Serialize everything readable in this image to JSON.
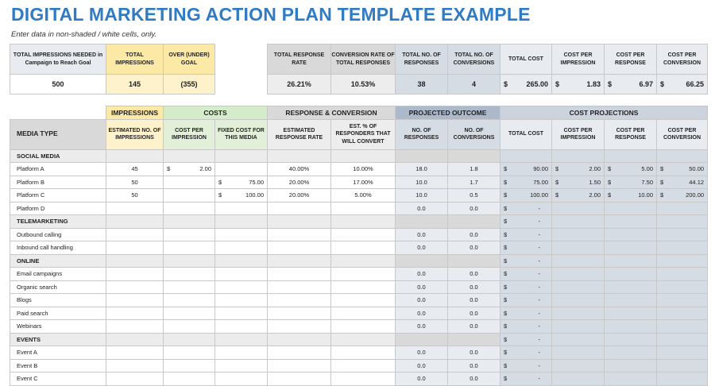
{
  "title": "DIGITAL MARKETING ACTION PLAN TEMPLATE EXAMPLE",
  "subtitle": "Enter data in non-shaded / white cells, only.",
  "summary_left": {
    "headers": [
      "TOTAL IMPRESSIONS NEEDED in Campaign to Reach Goal",
      "TOTAL IMPRESSIONS",
      "OVER (UNDER) GOAL"
    ],
    "values": [
      "500",
      "145",
      "(355)"
    ]
  },
  "summary_right": {
    "headers": [
      "TOTAL RESPONSE RATE",
      "CONVERSION RATE OF TOTAL RESPONSES",
      "TOTAL NO. OF RESPONSES",
      "TOTAL NO. OF CONVERSIONS",
      "TOTAL COST",
      "COST PER IMPRESSION",
      "COST PER RESPONSE",
      "COST PER CONVERSION"
    ],
    "values": [
      "26.21%",
      "10.53%",
      "38",
      "4",
      "265.00",
      "1.83",
      "6.97",
      "66.25"
    ],
    "currency": "$"
  },
  "groups": [
    "IMPRESSIONS",
    "COSTS",
    "RESPONSE & CONVERSION",
    "PROJECTED OUTCOME",
    "COST PROJECTIONS"
  ],
  "columns": [
    "MEDIA TYPE",
    "ESTIMATED NO. OF IMPRESSIONS",
    "COST PER IMPRESSION",
    "FIXED COST FOR THIS MEDIA",
    "ESTIMATED RESPONSE RATE",
    "EST. % OF RESPONDERS THAT WILL CONVERT",
    "NO. OF RESPONSES",
    "NO. OF CONVERSIONS",
    "TOTAL COST",
    "COST PER IMPRESSION",
    "COST PER RESPONSE",
    "COST PER CONVERSION"
  ],
  "rows": [
    {
      "section": true,
      "name": "SOCIAL MEDIA",
      "cells": [
        "",
        "",
        "",
        "",
        "",
        "",
        "",
        "",
        "",
        "",
        ""
      ]
    },
    {
      "name": "Platform A",
      "cells": [
        "45",
        "2.00",
        "",
        "40.00%",
        "10.00%",
        "18.0",
        "1.8",
        "90.00",
        "2.00",
        "5.00",
        "50.00"
      ]
    },
    {
      "name": "Platform B",
      "cells": [
        "50",
        "",
        "75.00",
        "20.00%",
        "17.00%",
        "10.0",
        "1.7",
        "75.00",
        "1.50",
        "7.50",
        "44.12"
      ]
    },
    {
      "name": "Platform C",
      "cells": [
        "50",
        "",
        "100.00",
        "20.00%",
        "5.00%",
        "10.0",
        "0.5",
        "100.00",
        "2.00",
        "10.00",
        "200.00"
      ]
    },
    {
      "name": "Platform D",
      "cells": [
        "",
        "",
        "",
        "",
        "",
        "0.0",
        "0.0",
        "-",
        "",
        "",
        ""
      ]
    },
    {
      "section": true,
      "name": "TELEMARKETING",
      "cells": [
        "",
        "",
        "",
        "",
        "",
        "",
        "",
        "-",
        "",
        "",
        ""
      ]
    },
    {
      "name": "Outbound calling",
      "cells": [
        "",
        "",
        "",
        "",
        "",
        "0.0",
        "0.0",
        "-",
        "",
        "",
        ""
      ]
    },
    {
      "name": "Inbound call handling",
      "cells": [
        "",
        "",
        "",
        "",
        "",
        "0.0",
        "0.0",
        "-",
        "",
        "",
        ""
      ]
    },
    {
      "section": true,
      "name": "ONLINE",
      "cells": [
        "",
        "",
        "",
        "",
        "",
        "",
        "",
        "-",
        "",
        "",
        ""
      ]
    },
    {
      "name": "Email campaigns",
      "cells": [
        "",
        "",
        "",
        "",
        "",
        "0.0",
        "0.0",
        "-",
        "",
        "",
        ""
      ]
    },
    {
      "name": "Organic search",
      "cells": [
        "",
        "",
        "",
        "",
        "",
        "0.0",
        "0.0",
        "-",
        "",
        "",
        ""
      ]
    },
    {
      "name": "Blogs",
      "cells": [
        "",
        "",
        "",
        "",
        "",
        "0.0",
        "0.0",
        "-",
        "",
        "",
        ""
      ]
    },
    {
      "name": "Paid search",
      "cells": [
        "",
        "",
        "",
        "",
        "",
        "0.0",
        "0.0",
        "-",
        "",
        "",
        ""
      ]
    },
    {
      "name": "Webinars",
      "cells": [
        "",
        "",
        "",
        "",
        "",
        "0.0",
        "0.0",
        "-",
        "",
        "",
        ""
      ]
    },
    {
      "section": true,
      "name": "EVENTS",
      "cells": [
        "",
        "",
        "",
        "",
        "",
        "",
        "",
        "-",
        "",
        "",
        ""
      ]
    },
    {
      "name": "Event A",
      "cells": [
        "",
        "",
        "",
        "",
        "",
        "0.0",
        "0.0",
        "-",
        "",
        "",
        ""
      ]
    },
    {
      "name": "Event B",
      "cells": [
        "",
        "",
        "",
        "",
        "",
        "0.0",
        "0.0",
        "-",
        "",
        "",
        ""
      ]
    },
    {
      "name": "Event C",
      "cells": [
        "",
        "",
        "",
        "",
        "",
        "0.0",
        "0.0",
        "-",
        "",
        "",
        ""
      ]
    }
  ]
}
